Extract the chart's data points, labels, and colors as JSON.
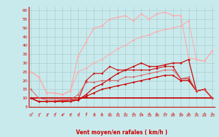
{
  "background_color": "#c8eaed",
  "grid_color": "#aacccc",
  "xlabel": "Vent moyen/en rafales ( km/h )",
  "xlim": [
    -0.3,
    23.3
  ],
  "ylim": [
    5,
    62
  ],
  "yticks": [
    5,
    10,
    15,
    20,
    25,
    30,
    35,
    40,
    45,
    50,
    55,
    60
  ],
  "xticks": [
    0,
    1,
    2,
    3,
    4,
    5,
    6,
    7,
    8,
    9,
    10,
    11,
    12,
    13,
    14,
    15,
    16,
    17,
    18,
    19,
    20,
    21,
    22,
    23
  ],
  "series": [
    {
      "x": [
        0,
        1,
        2,
        3,
        4,
        5,
        6,
        7,
        8,
        9,
        10,
        11,
        12,
        13,
        14,
        15,
        16,
        17,
        18,
        19,
        20,
        21,
        22,
        23
      ],
      "y": [
        10,
        10,
        10,
        10,
        10,
        10,
        10,
        10,
        10,
        10,
        10,
        10,
        10,
        10,
        10,
        10,
        10,
        10,
        10,
        10,
        10,
        10,
        10,
        10
      ],
      "color": "#cc0000",
      "lw": 1.3,
      "marker": null,
      "alpha": 1.0
    },
    {
      "x": [
        0,
        1,
        2,
        3,
        4,
        5,
        6,
        7,
        8,
        9,
        10,
        11,
        12,
        13,
        14,
        15,
        16,
        17,
        18,
        19,
        20,
        21,
        22,
        23
      ],
      "y": [
        10,
        8,
        8,
        8,
        8,
        8,
        9,
        11,
        13,
        15,
        16,
        17,
        18,
        19,
        20,
        21,
        22,
        23,
        23,
        20,
        20,
        14,
        15,
        10
      ],
      "color": "#cc0000",
      "lw": 0.9,
      "marker": "D",
      "markersize": 1.8,
      "alpha": 1.0
    },
    {
      "x": [
        0,
        1,
        2,
        3,
        4,
        5,
        6,
        7,
        8,
        9,
        10,
        11,
        12,
        13,
        14,
        15,
        16,
        17,
        18,
        19,
        20,
        21,
        22,
        23
      ],
      "y": [
        10,
        8,
        8,
        8,
        8,
        9,
        9,
        12,
        16,
        18,
        21,
        24,
        26,
        28,
        30,
        28,
        28,
        29,
        30,
        30,
        32,
        14,
        15,
        10
      ],
      "color": "#cc0000",
      "lw": 0.9,
      "marker": "D",
      "markersize": 1.8,
      "alpha": 1.0
    },
    {
      "x": [
        0,
        1,
        2,
        3,
        4,
        5,
        6,
        7,
        8,
        9,
        10,
        11,
        12,
        13,
        14,
        15,
        16,
        17,
        18,
        19,
        20,
        21,
        22,
        23
      ],
      "y": [
        10,
        8,
        8,
        8,
        9,
        9,
        9,
        20,
        24,
        24,
        28,
        26,
        26,
        26,
        26,
        26,
        27,
        28,
        28,
        21,
        21,
        14,
        15,
        10
      ],
      "color": "#cc0000",
      "lw": 0.9,
      "marker": "D",
      "markersize": 1.8,
      "alpha": 0.85
    },
    {
      "x": [
        0,
        1,
        2,
        3,
        4,
        5,
        6,
        7,
        8,
        9,
        10,
        11,
        12,
        13,
        14,
        15,
        16,
        17,
        18,
        19,
        20,
        21,
        22,
        23
      ],
      "y": [
        25,
        22,
        13,
        13,
        12,
        14,
        34,
        42,
        50,
        51,
        55,
        56,
        57,
        54,
        58,
        55,
        58,
        59,
        57,
        57,
        33,
        32,
        31,
        37
      ],
      "color": "#ffaaaa",
      "lw": 0.9,
      "marker": "D",
      "markersize": 1.8,
      "alpha": 1.0
    },
    {
      "x": [
        0,
        1,
        2,
        3,
        4,
        5,
        6,
        7,
        8,
        9,
        10,
        11,
        12,
        13,
        14,
        15,
        16,
        17,
        18,
        19,
        20,
        21,
        22,
        23
      ],
      "y": [
        25,
        22,
        13,
        13,
        12,
        14,
        25,
        27,
        30,
        32,
        35,
        38,
        40,
        43,
        45,
        46,
        48,
        49,
        50,
        51,
        54,
        32,
        31,
        37
      ],
      "color": "#ffaaaa",
      "lw": 0.9,
      "marker": "D",
      "markersize": 1.8,
      "alpha": 0.85
    },
    {
      "x": [
        0,
        1,
        2,
        3,
        4,
        5,
        6,
        7,
        8,
        9,
        10,
        11,
        12,
        13,
        14,
        15,
        16,
        17,
        18,
        19,
        20,
        21,
        22,
        23
      ],
      "y": [
        15,
        10,
        9,
        9,
        9,
        9,
        12,
        19,
        19,
        20,
        20,
        20,
        22,
        22,
        23,
        24,
        25,
        26,
        26,
        21,
        22,
        14,
        15,
        10
      ],
      "color": "#dd5555",
      "lw": 0.9,
      "marker": "D",
      "markersize": 1.8,
      "alpha": 0.75
    }
  ],
  "wind_dirs_deg": [
    -45,
    -50,
    -40,
    -45,
    -40,
    -40,
    -30,
    -20,
    -15,
    -10,
    -5,
    0,
    5,
    0,
    5,
    0,
    5,
    5,
    5,
    5,
    5,
    5,
    5,
    5
  ]
}
